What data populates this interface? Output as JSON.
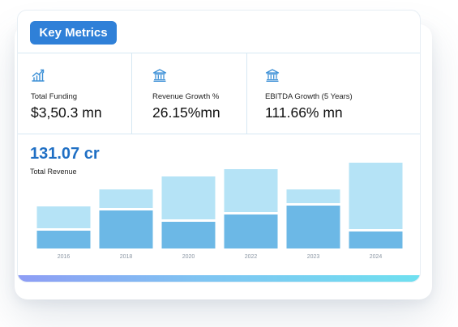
{
  "title": "Key Metrics",
  "metrics": [
    {
      "icon": "growth-chart-icon",
      "label": "Total Funding",
      "value": "$3,50.3 mn"
    },
    {
      "icon": "bank-icon",
      "label": "Revenue Growth %",
      "value": "26.15%mn"
    },
    {
      "icon": "bank-icon",
      "label": "EBITDA Growth (5 Years)",
      "value": "111.66% mn"
    }
  ],
  "revenue": {
    "value": "131.07 cr",
    "label": "Total Revenue"
  },
  "colors": {
    "accent": "#2f80d8",
    "bar_dark": "#6cb8e6",
    "bar_light": "#b5e3f6",
    "value_text": "#1f6fc4"
  },
  "chart_data": {
    "type": "bar",
    "stacked": true,
    "categories": [
      "2016",
      "2018",
      "2020",
      "2022",
      "2023",
      "2024"
    ],
    "series": [
      {
        "values": [
          22,
          47,
          33,
          42,
          53,
          21
        ]
      },
      {
        "values": [
          27,
          23,
          53,
          53,
          17,
          82
        ]
      }
    ],
    "ylim": [
      0,
      110
    ],
    "grid": false,
    "legend": "none"
  }
}
